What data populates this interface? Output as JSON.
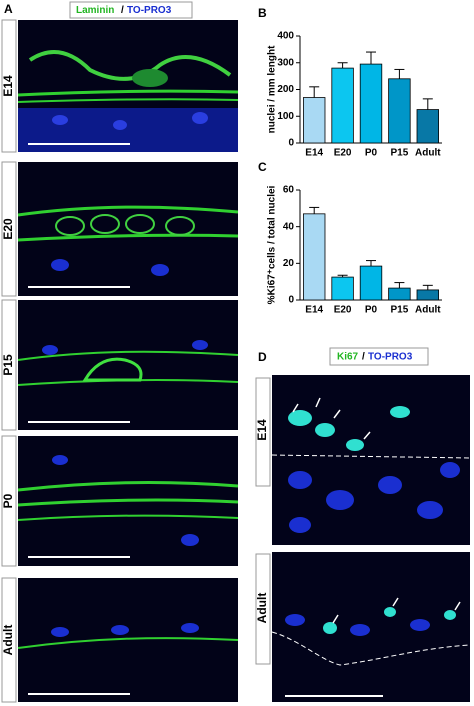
{
  "panel_a": {
    "letter": "A",
    "stain_1": "Laminin",
    "separator": "/",
    "stain_2": "TO-PRO3",
    "images": [
      "E14",
      "E20",
      "P15",
      "P0",
      "Adult"
    ]
  },
  "chart_data": [
    {
      "type": "bar",
      "panel_label": "B",
      "y_label": "nuclei / mm lenght",
      "categories": [
        "E14",
        "E20",
        "P0",
        "P15",
        "Adult"
      ],
      "values": [
        170,
        280,
        295,
        240,
        125
      ],
      "errors": [
        40,
        20,
        45,
        35,
        40
      ],
      "colors": [
        "#a9d9f3",
        "#0cc6f0",
        "#00b6e6",
        "#0096c8",
        "#0878a6"
      ],
      "ylim": [
        0,
        400
      ],
      "yticks": [
        0,
        100,
        200,
        300,
        400
      ]
    },
    {
      "type": "bar",
      "panel_label": "C",
      "y_label": "%Ki67⁺cells / total nuclei",
      "categories": [
        "E14",
        "E20",
        "P0",
        "P15",
        "Adult"
      ],
      "values": [
        47,
        12.5,
        18.5,
        6.5,
        5.5
      ],
      "errors": [
        3.5,
        1,
        3,
        3,
        2.5
      ],
      "colors": [
        "#a9d9f3",
        "#0cc6f0",
        "#00b6e6",
        "#0096c8",
        "#0878a6"
      ],
      "ylim": [
        0,
        60
      ],
      "yticks": [
        0,
        20,
        40,
        60
      ]
    }
  ],
  "panel_d": {
    "letter": "D",
    "stain_1": "Ki67",
    "separator": "/",
    "stain_2": "TO-PRO3",
    "images": [
      "E14",
      "Adult"
    ]
  }
}
